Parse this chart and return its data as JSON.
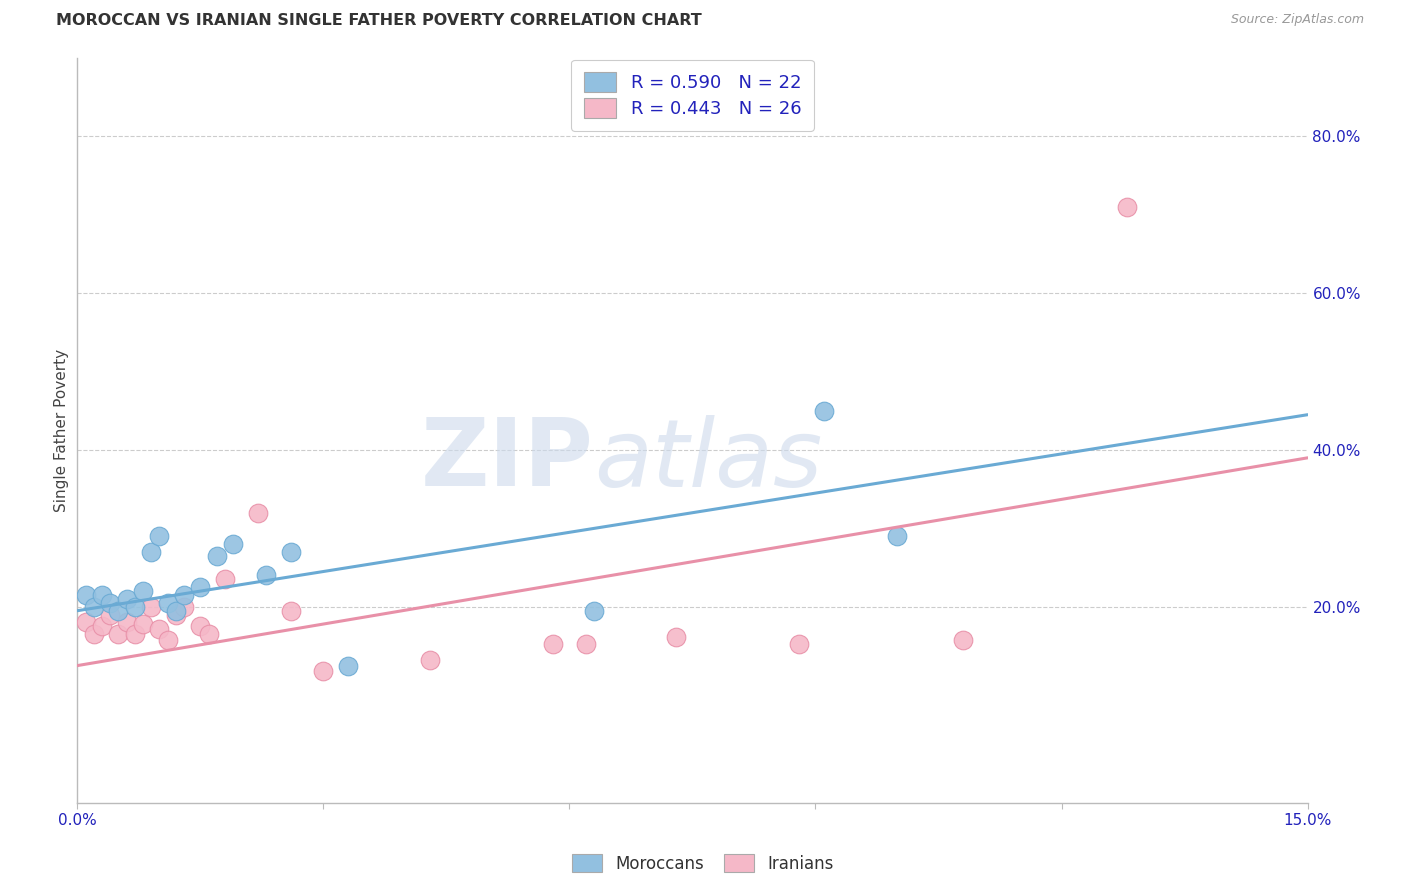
{
  "title": "MOROCCAN VS IRANIAN SINGLE FATHER POVERTY CORRELATION CHART",
  "source": "Source: ZipAtlas.com",
  "ylabel": "Single Father Poverty",
  "xlim": [
    0.0,
    0.15
  ],
  "ylim": [
    -0.05,
    0.9
  ],
  "y_ticks_right": [
    0.2,
    0.4,
    0.6,
    0.8
  ],
  "y_tick_labels_right": [
    "20.0%",
    "40.0%",
    "60.0%",
    "80.0%"
  ],
  "moroccan_color": "#92c0e0",
  "moroccan_color_dark": "#6aaad4",
  "iranian_color": "#f5b8c8",
  "iranian_color_dark": "#e890a8",
  "legend_blue_label": "R = 0.590   N = 22",
  "legend_pink_label": "R = 0.443   N = 26",
  "legend_label_color": "#2222bb",
  "moroccans_label": "Moroccans",
  "iranians_label": "Iranians",
  "moroccan_x": [
    0.001,
    0.002,
    0.003,
    0.004,
    0.005,
    0.006,
    0.007,
    0.008,
    0.009,
    0.01,
    0.011,
    0.012,
    0.013,
    0.015,
    0.017,
    0.019,
    0.023,
    0.026,
    0.033,
    0.063,
    0.091,
    0.1
  ],
  "moroccan_y": [
    0.215,
    0.2,
    0.215,
    0.205,
    0.195,
    0.21,
    0.2,
    0.22,
    0.27,
    0.29,
    0.205,
    0.195,
    0.215,
    0.225,
    0.265,
    0.28,
    0.24,
    0.27,
    0.125,
    0.195,
    0.45,
    0.29
  ],
  "iranian_x": [
    0.001,
    0.002,
    0.003,
    0.004,
    0.005,
    0.006,
    0.007,
    0.008,
    0.009,
    0.01,
    0.011,
    0.012,
    0.013,
    0.015,
    0.016,
    0.018,
    0.022,
    0.026,
    0.03,
    0.043,
    0.058,
    0.062,
    0.073,
    0.088,
    0.108,
    0.128
  ],
  "iranian_y": [
    0.18,
    0.165,
    0.175,
    0.19,
    0.165,
    0.18,
    0.165,
    0.178,
    0.2,
    0.172,
    0.158,
    0.19,
    0.2,
    0.175,
    0.165,
    0.235,
    0.32,
    0.195,
    0.118,
    0.132,
    0.152,
    0.152,
    0.162,
    0.152,
    0.158,
    0.71
  ],
  "blue_line_x": [
    0.0,
    0.15
  ],
  "blue_line_y": [
    0.195,
    0.445
  ],
  "pink_line_x": [
    0.0,
    0.15
  ],
  "pink_line_y": [
    0.125,
    0.39
  ],
  "watermark_zip": "ZIP",
  "watermark_atlas": "atlas",
  "background_color": "#ffffff",
  "grid_color": "#cccccc",
  "border_color": "#bbbbbb",
  "x_tick_positions": [
    0.0,
    0.03,
    0.06,
    0.09,
    0.12,
    0.15
  ],
  "x_tick_labels": [
    "0.0%",
    "",
    "",
    "",
    "",
    "15.0%"
  ]
}
